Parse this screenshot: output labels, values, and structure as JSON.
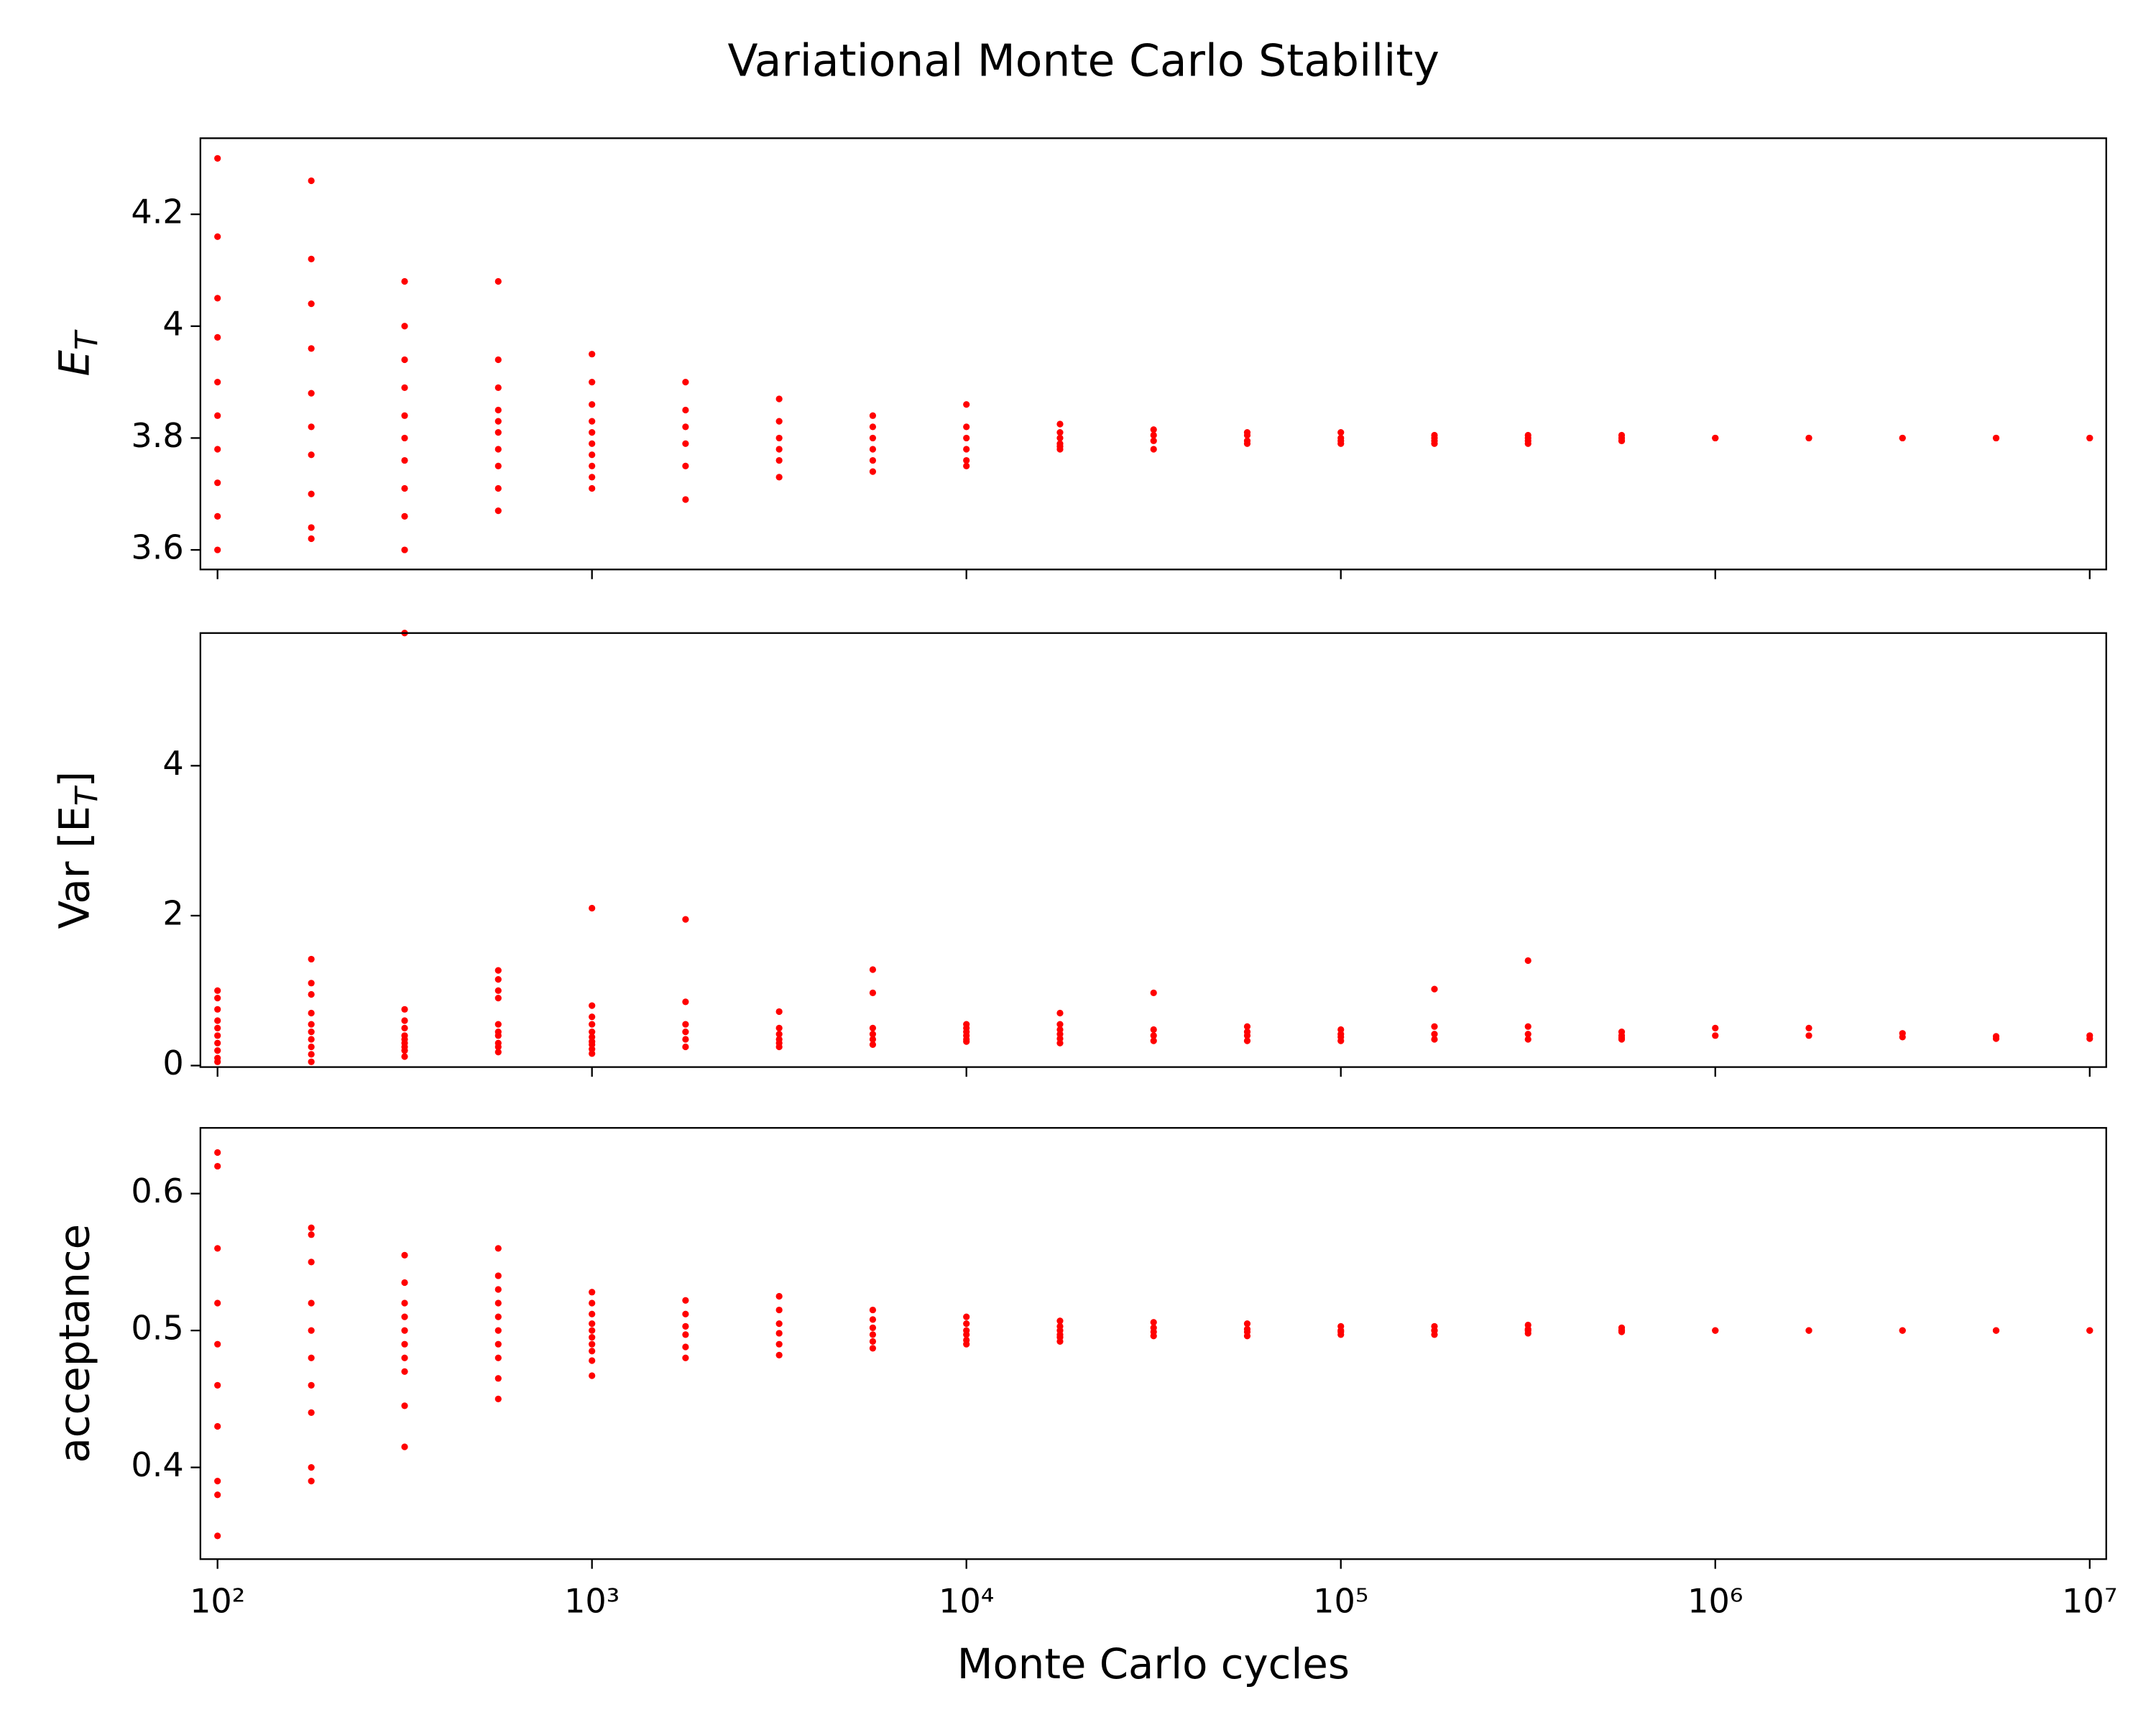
{
  "title": "Variational Monte Carlo Stability",
  "chart_data": [
    {
      "type": "scatter",
      "xlog": true,
      "color": "#ff0000",
      "ylabel_parts": [
        {
          "text": "E",
          "italic": true
        },
        {
          "text": "T",
          "italic": true,
          "sub": true
        }
      ],
      "xlim": [
        90,
        11070000
      ],
      "xticks": [
        100,
        1000,
        10000,
        100000,
        1000000,
        10000000
      ],
      "ylim": [
        3.565,
        4.336
      ],
      "yticks": [
        3.6,
        3.8,
        4.0,
        4.2
      ],
      "x": [
        100,
        100,
        100,
        100,
        100,
        100,
        100,
        100,
        100,
        100,
        178,
        178,
        178,
        178,
        178,
        178,
        178,
        178,
        178,
        178,
        316,
        316,
        316,
        316,
        316,
        316,
        316,
        316,
        316,
        316,
        562,
        562,
        562,
        562,
        562,
        562,
        562,
        562,
        562,
        562,
        1000,
        1000,
        1000,
        1000,
        1000,
        1000,
        1000,
        1000,
        1000,
        1000,
        1778,
        1778,
        1778,
        1778,
        1778,
        1778,
        3162,
        3162,
        3162,
        3162,
        3162,
        3162,
        5623,
        5623,
        5623,
        5623,
        5623,
        5623,
        10000,
        10000,
        10000,
        10000,
        10000,
        10000,
        17783,
        17783,
        17783,
        17783,
        17783,
        17783,
        31623,
        31623,
        31623,
        31623,
        56234,
        56234,
        56234,
        56234,
        100000,
        100000,
        100000,
        100000,
        177828,
        177828,
        177828,
        177828,
        316228,
        316228,
        316228,
        316228,
        562341,
        562341,
        562341,
        562341,
        1000000,
        1000000,
        1778279,
        1778279,
        3162278,
        3162278,
        5623413,
        5623413,
        10000000,
        10000000
      ],
      "y": [
        4.3,
        4.16,
        4.05,
        3.98,
        3.9,
        3.84,
        3.78,
        3.72,
        3.66,
        3.6,
        4.26,
        4.12,
        4.04,
        3.96,
        3.88,
        3.82,
        3.77,
        3.7,
        3.64,
        3.62,
        4.08,
        4.0,
        3.94,
        3.89,
        3.84,
        3.8,
        3.76,
        3.71,
        3.66,
        3.6,
        4.08,
        3.94,
        3.89,
        3.85,
        3.83,
        3.81,
        3.78,
        3.75,
        3.71,
        3.67,
        3.95,
        3.9,
        3.86,
        3.83,
        3.81,
        3.79,
        3.77,
        3.75,
        3.73,
        3.71,
        3.9,
        3.85,
        3.82,
        3.79,
        3.75,
        3.69,
        3.87,
        3.83,
        3.8,
        3.78,
        3.76,
        3.73,
        3.84,
        3.82,
        3.8,
        3.78,
        3.76,
        3.74,
        3.86,
        3.82,
        3.8,
        3.78,
        3.76,
        3.75,
        3.825,
        3.81,
        3.8,
        3.79,
        3.785,
        3.78,
        3.815,
        3.805,
        3.795,
        3.78,
        3.81,
        3.805,
        3.795,
        3.79,
        3.81,
        3.8,
        3.795,
        3.79,
        3.805,
        3.8,
        3.795,
        3.79,
        3.805,
        3.8,
        3.795,
        3.79,
        3.805,
        3.8,
        3.795,
        3.795,
        3.8,
        3.8,
        3.8,
        3.8,
        3.8,
        3.8,
        3.8,
        3.8,
        3.8,
        3.8
      ]
    },
    {
      "type": "scatter",
      "xlog": true,
      "color": "#ff0000",
      "ylabel_parts": [
        {
          "text": "Var [E",
          "italic": false
        },
        {
          "text": "T",
          "italic": true,
          "sub": true
        },
        {
          "text": "]",
          "italic": false
        }
      ],
      "xlim": [
        90,
        11070000
      ],
      "xticks": [
        100,
        1000,
        10000,
        100000,
        1000000,
        10000000
      ],
      "ylim": [
        -0.02,
        5.77
      ],
      "yticks": [
        0,
        2,
        4
      ],
      "x": [
        100,
        100,
        100,
        100,
        100,
        100,
        100,
        100,
        100,
        100,
        178,
        178,
        178,
        178,
        178,
        178,
        178,
        178,
        178,
        178,
        316,
        316,
        316,
        316,
        316,
        316,
        316,
        316,
        316,
        316,
        562,
        562,
        562,
        562,
        562,
        562,
        562,
        562,
        562,
        562,
        1000,
        1000,
        1000,
        1000,
        1000,
        1000,
        1000,
        1000,
        1000,
        1000,
        1778,
        1778,
        1778,
        1778,
        1778,
        1778,
        3162,
        3162,
        3162,
        3162,
        3162,
        3162,
        5623,
        5623,
        5623,
        5623,
        5623,
        5623,
        10000,
        10000,
        10000,
        10000,
        10000,
        10000,
        17783,
        17783,
        17783,
        17783,
        17783,
        17783,
        31623,
        31623,
        31623,
        31623,
        56234,
        56234,
        56234,
        56234,
        100000,
        100000,
        100000,
        100000,
        177828,
        177828,
        177828,
        177828,
        316228,
        316228,
        316228,
        316228,
        562341,
        562341,
        562341,
        562341,
        1000000,
        1000000,
        1778279,
        1778279,
        3162278,
        3162278,
        5623413,
        5623413,
        10000000,
        10000000
      ],
      "y": [
        1.0,
        0.9,
        0.75,
        0.6,
        0.5,
        0.4,
        0.3,
        0.2,
        0.1,
        0.05,
        1.42,
        1.1,
        0.95,
        0.7,
        0.55,
        0.45,
        0.35,
        0.25,
        0.15,
        0.05,
        5.77,
        0.75,
        0.6,
        0.5,
        0.4,
        0.35,
        0.3,
        0.25,
        0.2,
        0.12,
        1.27,
        1.15,
        1.0,
        0.9,
        0.55,
        0.45,
        0.4,
        0.3,
        0.25,
        0.18,
        2.1,
        0.8,
        0.65,
        0.55,
        0.45,
        0.38,
        0.32,
        0.28,
        0.22,
        0.16,
        1.95,
        0.85,
        0.55,
        0.45,
        0.35,
        0.25,
        0.72,
        0.5,
        0.42,
        0.35,
        0.3,
        0.25,
        1.28,
        0.97,
        0.5,
        0.42,
        0.35,
        0.28,
        0.55,
        0.5,
        0.45,
        0.4,
        0.35,
        0.32,
        0.7,
        0.55,
        0.48,
        0.42,
        0.36,
        0.3,
        0.97,
        0.48,
        0.4,
        0.33,
        0.52,
        0.45,
        0.4,
        0.33,
        0.48,
        0.42,
        0.38,
        0.33,
        1.02,
        0.52,
        0.42,
        0.35,
        1.4,
        0.52,
        0.42,
        0.35,
        0.45,
        0.4,
        0.37,
        0.35,
        0.5,
        0.4,
        0.5,
        0.4,
        0.43,
        0.38,
        0.39,
        0.36,
        0.4,
        0.36
      ]
    },
    {
      "type": "scatter",
      "xlog": true,
      "color": "#ff0000",
      "ylabel_parts": [
        {
          "text": "acceptance",
          "italic": false
        }
      ],
      "xlabel": "Monte Carlo cycles",
      "xlim": [
        90,
        11070000
      ],
      "xticks": [
        {
          "value": 100,
          "label": "10²"
        },
        {
          "value": 1000,
          "label": "10³"
        },
        {
          "value": 10000,
          "label": "10⁴"
        },
        {
          "value": 100000,
          "label": "10⁵"
        },
        {
          "value": 1000000,
          "label": "10⁶"
        },
        {
          "value": 10000000,
          "label": "10⁷"
        }
      ],
      "ylim": [
        0.333,
        0.648
      ],
      "yticks": [
        0.4,
        0.5,
        0.6
      ],
      "x": [
        100,
        100,
        100,
        100,
        100,
        100,
        100,
        100,
        100,
        100,
        178,
        178,
        178,
        178,
        178,
        178,
        178,
        178,
        178,
        178,
        316,
        316,
        316,
        316,
        316,
        316,
        316,
        316,
        316,
        316,
        562,
        562,
        562,
        562,
        562,
        562,
        562,
        562,
        562,
        562,
        1000,
        1000,
        1000,
        1000,
        1000,
        1000,
        1000,
        1000,
        1000,
        1000,
        1778,
        1778,
        1778,
        1778,
        1778,
        1778,
        3162,
        3162,
        3162,
        3162,
        3162,
        3162,
        5623,
        5623,
        5623,
        5623,
        5623,
        5623,
        10000,
        10000,
        10000,
        10000,
        10000,
        10000,
        17783,
        17783,
        17783,
        17783,
        17783,
        17783,
        31623,
        31623,
        31623,
        31623,
        56234,
        56234,
        56234,
        56234,
        100000,
        100000,
        100000,
        100000,
        177828,
        177828,
        177828,
        177828,
        316228,
        316228,
        316228,
        316228,
        562341,
        562341,
        562341,
        562341,
        1000000,
        1000000,
        1778279,
        1778279,
        3162278,
        3162278,
        5623413,
        5623413,
        10000000,
        10000000
      ],
      "y": [
        0.63,
        0.62,
        0.56,
        0.52,
        0.49,
        0.46,
        0.43,
        0.39,
        0.38,
        0.35,
        0.575,
        0.57,
        0.55,
        0.52,
        0.5,
        0.48,
        0.46,
        0.44,
        0.4,
        0.39,
        0.555,
        0.535,
        0.52,
        0.51,
        0.5,
        0.49,
        0.48,
        0.47,
        0.445,
        0.415,
        0.56,
        0.54,
        0.53,
        0.52,
        0.51,
        0.5,
        0.49,
        0.48,
        0.465,
        0.45,
        0.528,
        0.52,
        0.512,
        0.505,
        0.5,
        0.495,
        0.49,
        0.485,
        0.478,
        0.467,
        0.522,
        0.512,
        0.503,
        0.497,
        0.488,
        0.48,
        0.525,
        0.515,
        0.505,
        0.498,
        0.49,
        0.482,
        0.515,
        0.508,
        0.502,
        0.497,
        0.492,
        0.487,
        0.51,
        0.505,
        0.5,
        0.497,
        0.493,
        0.49,
        0.507,
        0.503,
        0.5,
        0.497,
        0.495,
        0.492,
        0.506,
        0.502,
        0.499,
        0.496,
        0.505,
        0.501,
        0.499,
        0.496,
        0.503,
        0.5,
        0.499,
        0.497,
        0.503,
        0.5,
        0.5,
        0.497,
        0.504,
        0.501,
        0.5,
        0.498,
        0.502,
        0.5,
        0.5,
        0.499,
        0.5,
        0.5,
        0.5,
        0.5,
        0.5,
        0.5,
        0.5,
        0.5,
        0.5,
        0.5
      ]
    }
  ]
}
